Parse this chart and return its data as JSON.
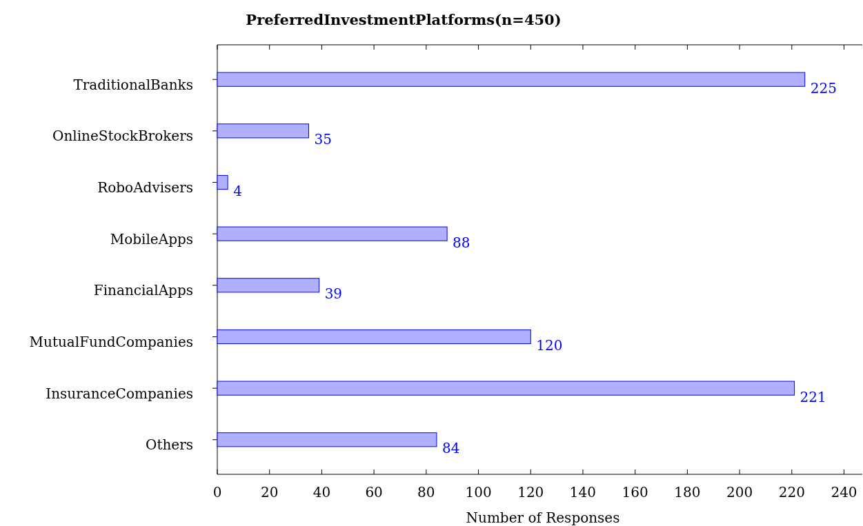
{
  "chart_data": {
    "type": "bar",
    "orientation": "horizontal",
    "title": "PreferredInvestmentPlatforms(n=450)",
    "xlabel": "Number of Responses",
    "categories": [
      "TraditionalBanks",
      "OnlineStockBrokers",
      "RoboAdvisers",
      "MobileApps",
      "FinancialApps",
      "MutualFundCompanies",
      "InsuranceCompanies",
      "Others"
    ],
    "values": [
      225,
      35,
      4,
      88,
      39,
      120,
      221,
      84
    ],
    "color": "#b0b0ff",
    "xlim": [
      0,
      247
    ],
    "xticks": [
      0,
      20,
      40,
      60,
      80,
      100,
      120,
      140,
      160,
      180,
      200,
      220,
      240
    ],
    "data_labels": true
  }
}
